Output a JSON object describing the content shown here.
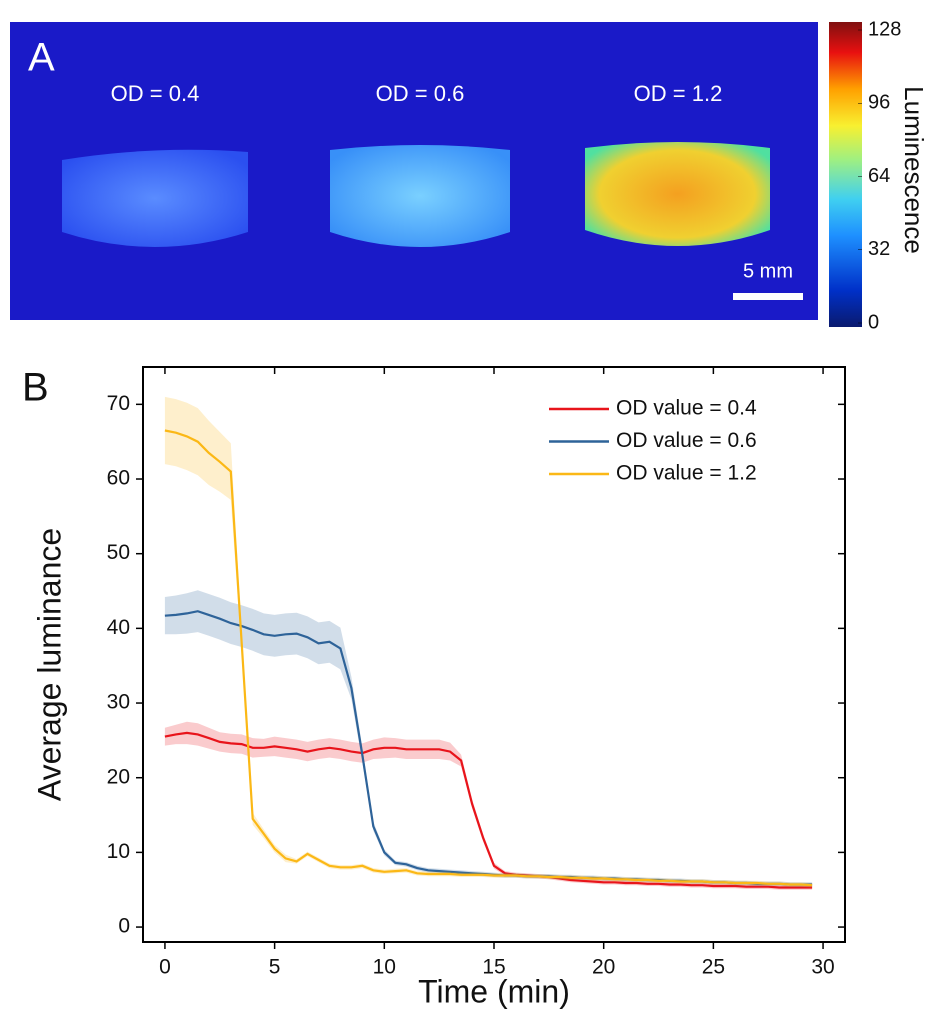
{
  "panel_a": {
    "label": "A",
    "samples": [
      "OD = 0.4",
      "OD = 0.6",
      "OD = 1.2"
    ],
    "scale_bar": "5 mm",
    "colorbar": {
      "label": "Luminescence",
      "lim": [
        0,
        128
      ],
      "ticks": [
        0,
        32,
        64,
        96,
        128
      ]
    }
  },
  "chart_data": {
    "type": "line",
    "panel_label": "B",
    "xlabel": "Time (min)",
    "ylabel": "Average luminance",
    "x": [
      0,
      0.5,
      1,
      1.5,
      2,
      2.5,
      3,
      3.5,
      4,
      4.5,
      5,
      5.5,
      6,
      6.5,
      7,
      7.5,
      8,
      8.5,
      9,
      9.5,
      10,
      10.5,
      11,
      11.5,
      12,
      12.5,
      13,
      13.5,
      14,
      14.5,
      15,
      15.5,
      16,
      16.5,
      17,
      17.5,
      18,
      18.5,
      19,
      19.5,
      20,
      20.5,
      21,
      21.5,
      22,
      22.5,
      23,
      23.5,
      24,
      24.5,
      25,
      25.5,
      26,
      26.5,
      27,
      27.5,
      28,
      28.5,
      29,
      29.5
    ],
    "series": [
      {
        "name": "OD value = 0.4",
        "color": "#e8141b",
        "values": [
          25.5,
          25.8,
          26,
          25.8,
          25.3,
          24.8,
          24.6,
          24.5,
          24.0,
          24.0,
          24.2,
          24.0,
          23.8,
          23.5,
          23.8,
          24.0,
          23.8,
          23.5,
          23.3,
          23.8,
          24.0,
          24.0,
          23.8,
          23.8,
          23.8,
          23.8,
          23.5,
          22.3,
          16.5,
          12.0,
          8.2,
          7.2,
          7.0,
          6.9,
          6.8,
          6.7,
          6.5,
          6.3,
          6.2,
          6.1,
          6.0,
          6.0,
          5.9,
          5.9,
          5.8,
          5.8,
          5.7,
          5.7,
          5.6,
          5.6,
          5.5,
          5.5,
          5.5,
          5.4,
          5.4,
          5.4,
          5.3,
          5.3,
          5.3,
          5.3
        ],
        "errors": [
          1.2,
          1.3,
          1.5,
          1.5,
          1.4,
          1.3,
          1.3,
          1.3,
          1.3,
          1.2,
          1.3,
          1.3,
          1.3,
          1.3,
          1.3,
          1.3,
          1.3,
          1.3,
          1.3,
          1.3,
          1.4,
          1.3,
          1.3,
          1.3,
          1.3,
          1.3,
          1.2,
          0.8,
          0.6,
          0.5,
          0.4,
          0.3,
          0.3,
          0.3,
          0.3,
          0.3,
          0.3,
          0.3,
          0.3,
          0.3,
          0.3,
          0.3,
          0.3,
          0.3,
          0.3,
          0.3,
          0.3,
          0.3,
          0.3,
          0.3,
          0.3,
          0.3,
          0.3,
          0.3,
          0.3,
          0.3,
          0.3,
          0.3,
          0.3,
          0.3
        ]
      },
      {
        "name": "OD value = 0.6",
        "color": "#2e6399",
        "values": [
          41.7,
          41.8,
          42.0,
          42.3,
          41.8,
          41.3,
          40.7,
          40.3,
          39.8,
          39.2,
          39.0,
          39.2,
          39.3,
          38.8,
          38.0,
          38.2,
          37.3,
          32.0,
          23.0,
          13.5,
          10.0,
          8.6,
          8.4,
          7.9,
          7.6,
          7.5,
          7.4,
          7.3,
          7.2,
          7.1,
          7.0,
          6.9,
          6.9,
          6.8,
          6.8,
          6.8,
          6.7,
          6.7,
          6.6,
          6.6,
          6.5,
          6.5,
          6.4,
          6.4,
          6.3,
          6.3,
          6.2,
          6.2,
          6.1,
          6.1,
          6.0,
          6.0,
          5.9,
          5.9,
          5.8,
          5.8,
          5.8,
          5.7,
          5.7,
          5.7
        ],
        "errors": [
          2.5,
          2.6,
          2.7,
          2.8,
          2.8,
          2.8,
          2.8,
          2.8,
          2.8,
          2.8,
          2.8,
          2.8,
          2.8,
          2.8,
          2.8,
          2.8,
          2.8,
          1.5,
          1.0,
          0.6,
          0.4,
          0.3,
          0.3,
          0.3,
          0.3,
          0.3,
          0.3,
          0.3,
          0.3,
          0.3,
          0.3,
          0.3,
          0.3,
          0.3,
          0.3,
          0.3,
          0.3,
          0.3,
          0.3,
          0.3,
          0.3,
          0.3,
          0.3,
          0.3,
          0.3,
          0.3,
          0.3,
          0.3,
          0.3,
          0.3,
          0.3,
          0.3,
          0.3,
          0.3,
          0.3,
          0.3,
          0.3,
          0.3,
          0.3,
          0.3
        ]
      },
      {
        "name": "OD value = 1.2",
        "color": "#fbb816",
        "values": [
          66.5,
          66.2,
          65.7,
          65.0,
          63.5,
          62.3,
          61.0,
          38.0,
          14.5,
          12.5,
          10.5,
          9.2,
          8.8,
          9.8,
          9.0,
          8.2,
          8.0,
          8.0,
          8.2,
          7.6,
          7.4,
          7.5,
          7.6,
          7.2,
          7.1,
          7.1,
          7.1,
          7.0,
          7.0,
          7.0,
          6.9,
          6.9,
          6.9,
          6.8,
          6.8,
          6.7,
          6.7,
          6.6,
          6.6,
          6.5,
          6.5,
          6.4,
          6.4,
          6.3,
          6.3,
          6.2,
          6.2,
          6.1,
          6.1,
          6.1,
          6.0,
          6.0,
          5.9,
          5.9,
          5.9,
          5.8,
          5.8,
          5.7,
          5.7,
          5.6
        ],
        "errors": [
          4.5,
          4.5,
          4.5,
          4.5,
          4.3,
          4.0,
          3.8,
          1.5,
          0.8,
          0.6,
          0.5,
          0.5,
          0.3,
          0.3,
          0.3,
          0.3,
          0.3,
          0.3,
          0.3,
          0.3,
          0.3,
          0.3,
          0.3,
          0.3,
          0.3,
          0.3,
          0.3,
          0.3,
          0.3,
          0.3,
          0.3,
          0.3,
          0.3,
          0.3,
          0.3,
          0.3,
          0.3,
          0.3,
          0.3,
          0.3,
          0.3,
          0.3,
          0.3,
          0.3,
          0.3,
          0.3,
          0.3,
          0.3,
          0.3,
          0.3,
          0.3,
          0.3,
          0.3,
          0.3,
          0.3,
          0.3,
          0.3,
          0.3,
          0.3,
          0.3
        ]
      }
    ],
    "xlim": [
      -1,
      31
    ],
    "ylim": [
      -2,
      75
    ],
    "xticks": [
      0,
      5,
      10,
      15,
      20,
      25,
      30
    ],
    "yticks": [
      0,
      10,
      20,
      30,
      40,
      50,
      60,
      70
    ],
    "legend": "upper right"
  }
}
